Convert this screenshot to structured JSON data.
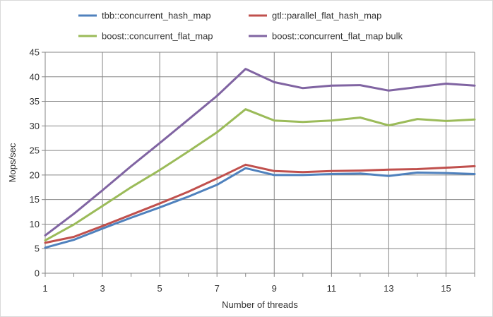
{
  "chart_data": {
    "type": "line",
    "title": "",
    "xlabel": "Number of threads",
    "ylabel": "Mops/sec",
    "x": [
      1,
      2,
      3,
      4,
      5,
      6,
      7,
      8,
      9,
      10,
      11,
      12,
      13,
      14,
      15,
      16
    ],
    "xlim": [
      1,
      16
    ],
    "ylim": [
      0,
      45
    ],
    "x_tick_labels": [
      "1",
      "3",
      "5",
      "7",
      "9",
      "11",
      "13",
      "15"
    ],
    "y_tick_labels": [
      "0",
      "5",
      "10",
      "15",
      "20",
      "25",
      "30",
      "35",
      "40",
      "45"
    ],
    "grid": true,
    "legend_position": "top",
    "series": [
      {
        "name": "tbb::concurrent_hash_map",
        "color": "#4f81bd",
        "values": [
          5.2,
          6.8,
          9.1,
          11.3,
          13.4,
          15.6,
          18.0,
          21.4,
          20.0,
          20.0,
          20.2,
          20.3,
          19.8,
          20.5,
          20.4,
          20.2
        ]
      },
      {
        "name": "gtl::parallel_flat_hash_map",
        "color": "#c0504d",
        "values": [
          6.2,
          7.4,
          9.6,
          11.9,
          14.2,
          16.6,
          19.3,
          22.1,
          20.8,
          20.6,
          20.8,
          20.9,
          21.1,
          21.2,
          21.5,
          21.8
        ]
      },
      {
        "name": "boost::concurrent_flat_map",
        "color": "#9bbb59",
        "values": [
          6.7,
          9.9,
          13.7,
          17.5,
          21.0,
          24.8,
          28.7,
          33.4,
          31.1,
          30.8,
          31.1,
          31.7,
          30.1,
          31.4,
          31.0,
          31.3
        ]
      },
      {
        "name": "boost::concurrent_flat_map bulk",
        "color": "#8064a2",
        "values": [
          7.7,
          12.1,
          16.9,
          21.8,
          26.5,
          31.3,
          36.1,
          41.6,
          38.9,
          37.7,
          38.2,
          38.3,
          37.2,
          37.9,
          38.6,
          38.2
        ]
      }
    ]
  }
}
